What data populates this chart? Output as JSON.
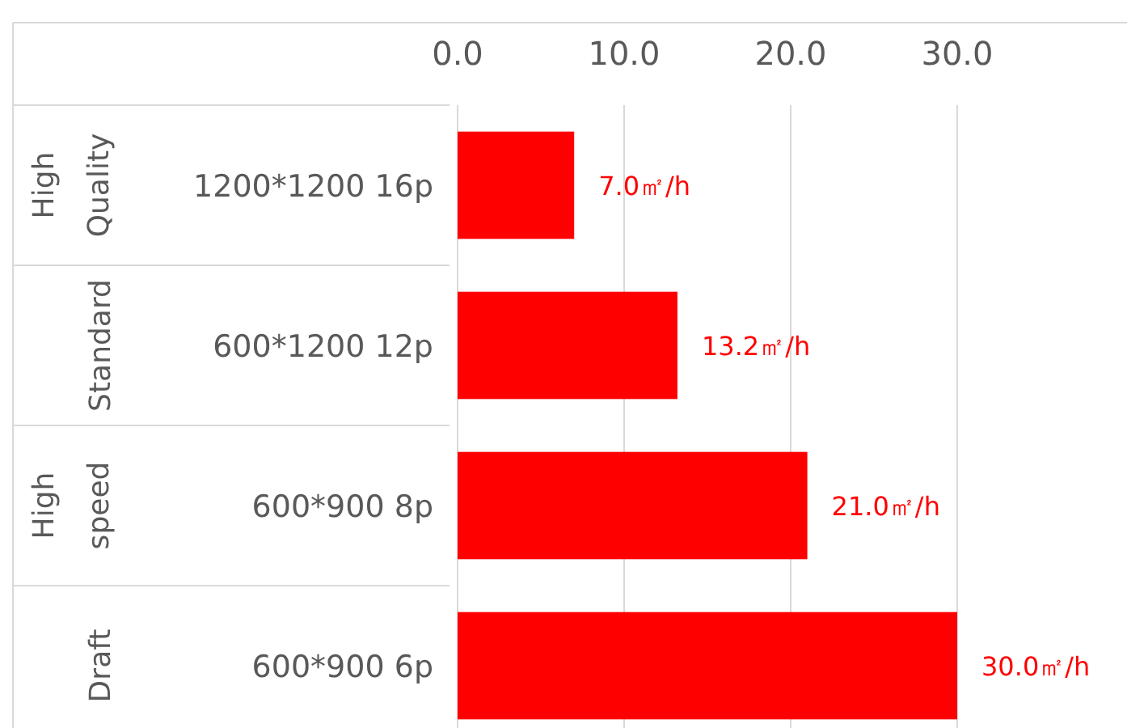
{
  "chart_data": {
    "type": "bar",
    "orientation": "horizontal",
    "categories": [
      "1200*1200 16p",
      "600*1200 12p",
      "600*900 8p",
      "600*900 6p"
    ],
    "values": [
      7.0,
      13.2,
      21.0,
      30.0
    ],
    "color": "#ff0000",
    "value_labels": [
      "7.0㎡/h",
      "13.2㎡/h",
      "21.0㎡/h",
      "30.0㎡/h"
    ],
    "xlim": [
      0,
      40
    ],
    "xticks": [
      {
        "value": 0,
        "label": "0.0"
      },
      {
        "value": 10,
        "label": "10.0"
      },
      {
        "value": 20,
        "label": "20.0"
      },
      {
        "value": 30,
        "label": "30.0"
      }
    ],
    "grid": "x",
    "annotations": [
      "High Quality",
      "Standard",
      "High speed",
      "Draft"
    ]
  }
}
